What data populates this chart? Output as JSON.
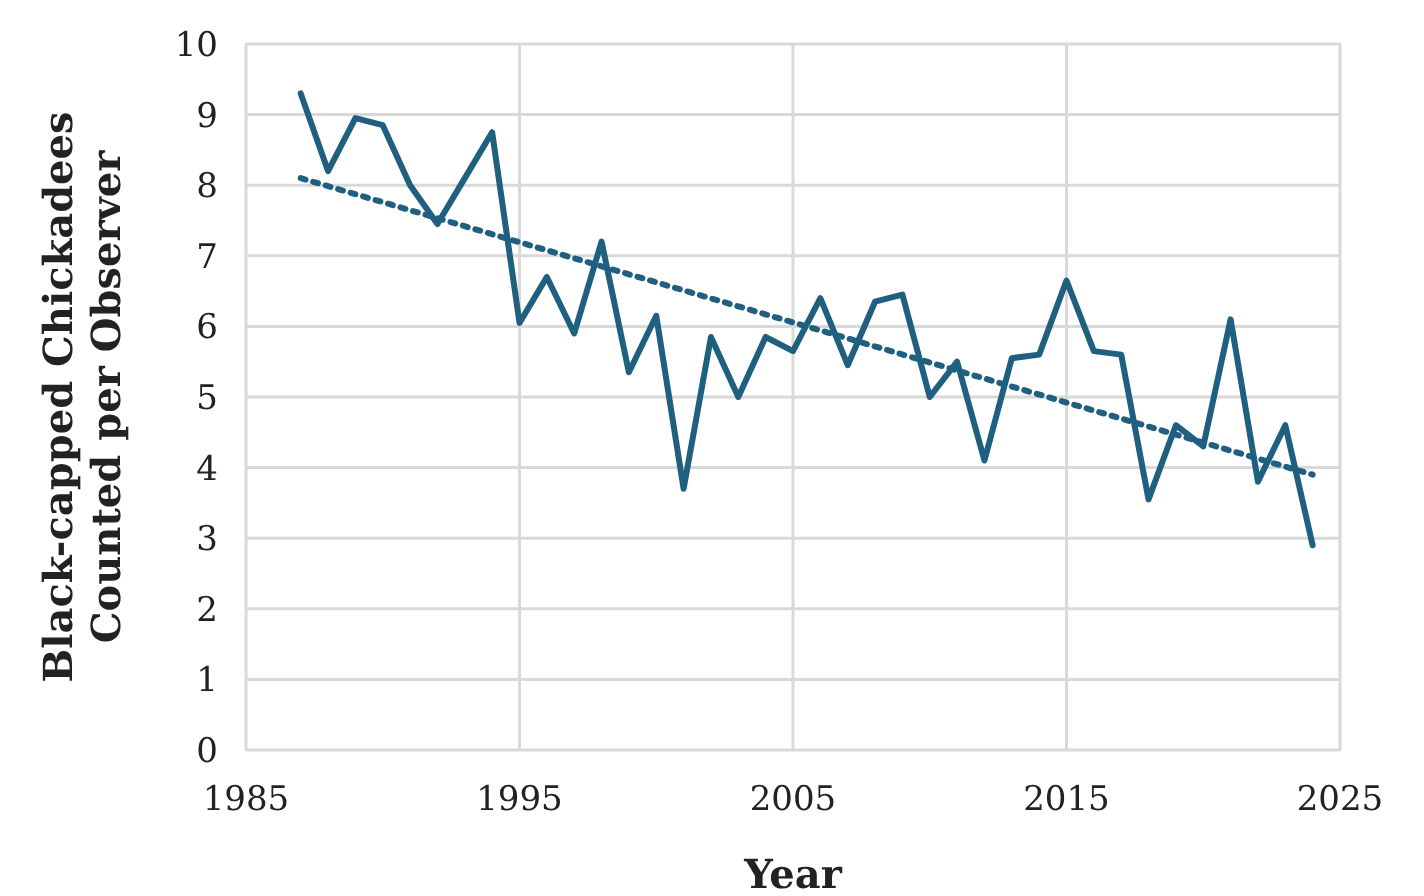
{
  "chart_data": {
    "type": "line",
    "xlabel": "Year",
    "ylabel": "Black-capped Chickadees\nCounted per Observer",
    "x": [
      1987,
      1988,
      1989,
      1990,
      1991,
      1992,
      1993,
      1994,
      1995,
      1996,
      1997,
      1998,
      1999,
      2000,
      2001,
      2002,
      2003,
      2004,
      2005,
      2006,
      2007,
      2008,
      2009,
      2010,
      2011,
      2012,
      2013,
      2014,
      2015,
      2016,
      2017,
      2018,
      2019,
      2020,
      2021,
      2022,
      2023,
      2024
    ],
    "series": [
      {
        "color": "#1f5f7f",
        "values": [
          9.3,
          8.2,
          8.95,
          8.85,
          8.0,
          7.45,
          8.1,
          8.75,
          6.05,
          6.7,
          5.9,
          7.2,
          5.35,
          6.15,
          3.7,
          5.85,
          5.0,
          5.85,
          5.65,
          6.4,
          5.45,
          6.35,
          6.45,
          5.0,
          5.5,
          4.1,
          5.55,
          5.6,
          6.65,
          5.65,
          5.6,
          3.55,
          4.6,
          4.3,
          6.1,
          3.8,
          4.6,
          2.9
        ],
        "line_style": "solid"
      },
      {
        "color": "#1f5f7f",
        "x": [
          1987,
          2024
        ],
        "values": [
          8.1,
          3.9
        ],
        "line_style": "dotted"
      }
    ],
    "xlim": [
      1985,
      2025
    ],
    "xticks": [
      1985,
      1995,
      2005,
      2015,
      2025
    ],
    "ylim": [
      0,
      10
    ],
    "yticks": [
      0,
      1,
      2,
      3,
      4,
      5,
      6,
      7,
      8,
      9,
      10
    ],
    "grid": true,
    "marker": "none"
  }
}
